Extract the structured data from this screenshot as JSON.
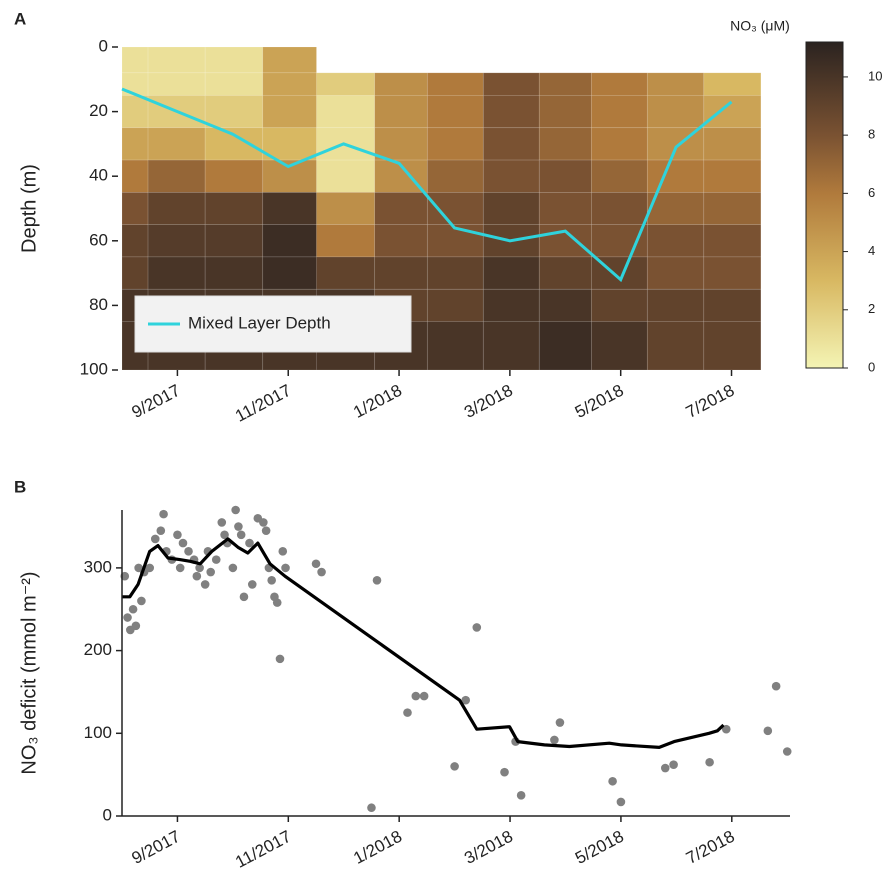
{
  "chart_data": [
    {
      "type": "heatmap",
      "panel": "A",
      "ylabel": "Depth (m)",
      "xlim": [
        0,
        11.55
      ],
      "ylim": [
        0,
        100
      ],
      "xticks": [
        {
          "value": 1,
          "label": "9/2017"
        },
        {
          "value": 3,
          "label": "11/2017"
        },
        {
          "value": 5,
          "label": "1/2018"
        },
        {
          "value": 7,
          "label": "3/2018"
        },
        {
          "value": 9,
          "label": "5/2018"
        },
        {
          "value": 11,
          "label": "7/2018"
        }
      ],
      "yticks": [
        0,
        20,
        40,
        60,
        80,
        100
      ],
      "x_edges": [
        0,
        0.47,
        1.5,
        2.54,
        3.51,
        4.56,
        5.51,
        6.52,
        7.53,
        8.47,
        9.48,
        10.5,
        11.53
      ],
      "depth_edges": [
        0,
        8,
        15,
        25,
        35,
        45,
        55,
        65,
        75,
        85,
        100
      ],
      "values": [
        [
          1,
          1,
          2,
          4,
          6,
          8,
          9,
          9,
          10,
          10
        ],
        [
          1,
          1,
          2,
          4,
          7,
          9,
          9.5,
          10,
          10,
          10
        ],
        [
          1,
          1,
          2,
          3,
          6,
          9,
          9.5,
          10,
          10,
          10
        ],
        [
          4,
          4,
          4,
          3,
          5,
          10,
          10.5,
          10.5,
          10,
          10
        ],
        [
          null,
          2,
          1,
          1,
          1,
          5,
          6,
          9,
          10,
          10
        ],
        [
          null,
          5,
          5,
          5,
          5,
          8,
          8,
          9,
          9,
          10
        ],
        [
          null,
          6,
          6,
          6,
          7,
          8,
          8,
          9,
          9,
          10
        ],
        [
          null,
          8,
          8,
          8,
          8,
          9,
          9,
          10,
          10,
          10
        ],
        [
          null,
          7,
          7,
          7,
          8,
          8,
          8,
          9,
          10,
          10.5
        ],
        [
          null,
          6,
          6,
          6,
          7,
          8,
          8,
          9,
          9,
          10
        ],
        [
          null,
          5,
          5,
          5,
          6,
          7,
          8,
          8,
          9,
          9
        ],
        [
          null,
          3,
          4,
          5,
          6,
          7,
          8,
          8,
          9,
          9
        ]
      ],
      "colormap": [
        [
          0,
          "#f4f4b4"
        ],
        [
          3,
          "#d8b862"
        ],
        [
          6,
          "#b07a3c"
        ],
        [
          8,
          "#7a5232"
        ],
        [
          11.2,
          "#2b2320"
        ]
      ],
      "colorbar": {
        "title": "NO₃ (μM)",
        "lim": [
          0,
          11.2
        ],
        "ticks": [
          0,
          2,
          4,
          6,
          8,
          10
        ]
      },
      "line": {
        "name": "Mixed Layer Depth",
        "color": "#2fd3dc",
        "x": [
          0,
          1,
          2,
          3,
          4,
          5,
          6,
          7,
          8,
          9,
          10,
          11
        ],
        "values": [
          13,
          20,
          27,
          37,
          30,
          36,
          56,
          60,
          57,
          72,
          31,
          17
        ]
      },
      "legend": "lower left"
    },
    {
      "type": "scatter",
      "panel": "B",
      "ylabel": "NO₃ deficit (mmol m⁻²)",
      "xlim": [
        0,
        12.05
      ],
      "ylim": [
        0,
        370
      ],
      "xticks": [
        {
          "value": 1,
          "label": "9/2017"
        },
        {
          "value": 3,
          "label": "11/2017"
        },
        {
          "value": 5,
          "label": "1/2018"
        },
        {
          "value": 7,
          "label": "3/2018"
        },
        {
          "value": 9,
          "label": "5/2018"
        },
        {
          "value": 11,
          "label": "7/2018"
        }
      ],
      "yticks": [
        0,
        100,
        200,
        300
      ],
      "points": {
        "color": "#808080",
        "x": [
          0.05,
          0.1,
          0.15,
          0.2,
          0.25,
          0.3,
          0.35,
          0.4,
          0.5,
          0.6,
          0.7,
          0.75,
          0.8,
          0.9,
          1.0,
          1.05,
          1.1,
          1.2,
          1.3,
          1.35,
          1.4,
          1.5,
          1.55,
          1.6,
          1.7,
          1.8,
          1.85,
          1.9,
          2.0,
          2.05,
          2.1,
          2.15,
          2.2,
          2.3,
          2.35,
          2.45,
          2.55,
          2.6,
          2.65,
          2.7,
          2.75,
          2.8,
          2.85,
          2.9,
          2.95,
          3.5,
          3.6,
          4.5,
          4.6,
          5.15,
          5.3,
          5.45,
          6.0,
          6.2,
          6.4,
          6.9,
          7.1,
          7.2,
          7.8,
          7.9,
          8.85,
          9.0,
          9.8,
          9.95,
          10.6,
          10.9,
          11.65,
          11.8,
          12.0
        ],
        "values": [
          290,
          240,
          225,
          250,
          230,
          300,
          260,
          295,
          300,
          335,
          345,
          365,
          320,
          310,
          340,
          300,
          330,
          320,
          310,
          290,
          300,
          280,
          320,
          295,
          310,
          355,
          340,
          330,
          300,
          370,
          350,
          340,
          265,
          330,
          280,
          360,
          355,
          345,
          300,
          285,
          265,
          258,
          190,
          320,
          300,
          305,
          295,
          10,
          285,
          125,
          145,
          145,
          60,
          140,
          228,
          53,
          90,
          25,
          92,
          113,
          42,
          17,
          58,
          62,
          65,
          105,
          103,
          157,
          78
        ]
      },
      "line": {
        "color": "#000000",
        "x": [
          0,
          0.14,
          0.29,
          0.5,
          0.65,
          0.83,
          1.04,
          1.23,
          1.41,
          1.62,
          1.91,
          2.09,
          2.27,
          2.45,
          2.67,
          2.94,
          6.09,
          6.4,
          6.99,
          7.14,
          7.62,
          8.07,
          8.79,
          9.01,
          9.69,
          9.96,
          10.59,
          10.74,
          10.85
        ],
        "values": [
          265,
          265,
          280,
          320,
          327,
          312,
          310,
          308,
          305,
          320,
          335,
          325,
          318,
          330,
          305,
          290,
          140,
          105,
          108,
          90,
          86,
          84,
          88,
          86,
          83,
          90,
          100,
          103,
          110
        ]
      }
    }
  ]
}
